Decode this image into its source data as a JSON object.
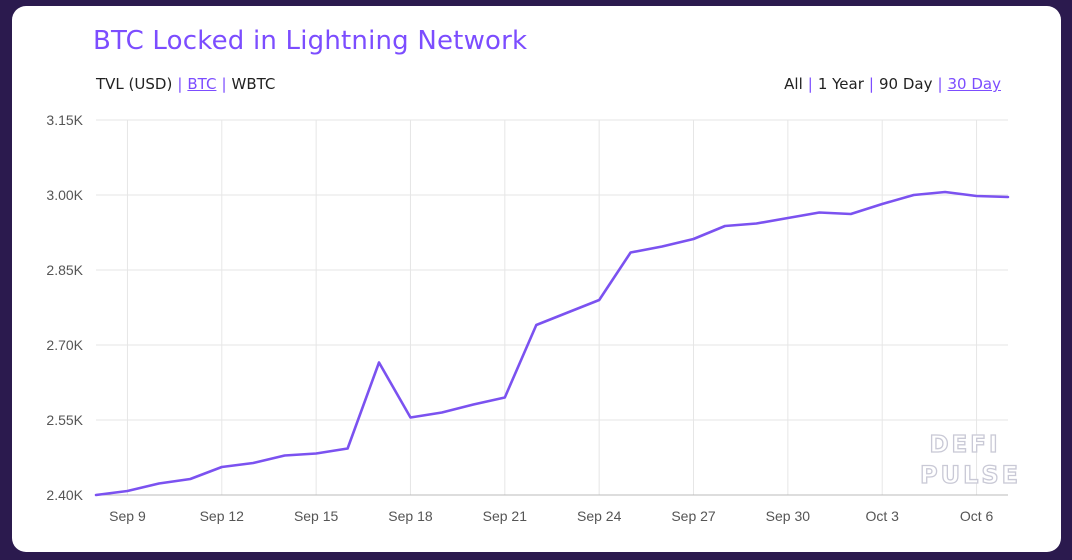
{
  "title": "BTC Locked in Lightning Network",
  "currency_toggle": [
    {
      "label": "TVL (USD)",
      "active": false
    },
    {
      "label": "BTC",
      "active": true
    },
    {
      "label": "WBTC",
      "active": false
    }
  ],
  "range_toggle": [
    {
      "label": "All",
      "active": false
    },
    {
      "label": "1 Year",
      "active": false
    },
    {
      "label": "90 Day",
      "active": false
    },
    {
      "label": "30 Day",
      "active": true
    }
  ],
  "separator": "|",
  "watermark": {
    "line1": "DEFI",
    "line2": "PULSE"
  },
  "colors": {
    "accent": "#7c4dff",
    "line": "#7b52f0",
    "grid": "#e6e6e6",
    "background": "#2b1a4e"
  },
  "chart_data": {
    "type": "line",
    "x": [
      "Sep 8",
      "Sep 9",
      "Sep 10",
      "Sep 11",
      "Sep 12",
      "Sep 13",
      "Sep 14",
      "Sep 15",
      "Sep 16",
      "Sep 17",
      "Sep 18",
      "Sep 19",
      "Sep 20",
      "Sep 21",
      "Sep 22",
      "Sep 23",
      "Sep 24",
      "Sep 25",
      "Sep 26",
      "Sep 27",
      "Sep 28",
      "Sep 29",
      "Sep 30",
      "Oct 1",
      "Oct 2",
      "Oct 3",
      "Oct 4",
      "Oct 5",
      "Oct 6",
      "Oct 7"
    ],
    "values": [
      2400,
      2408,
      2423,
      2432,
      2456,
      2464,
      2479,
      2483,
      2493,
      2665,
      2555,
      2565,
      2581,
      2595,
      2740,
      2765,
      2790,
      2885,
      2897,
      2912,
      2938,
      2943,
      2954,
      2965,
      2962,
      2982,
      3000,
      3006,
      2998,
      2996
    ],
    "x_ticks": [
      "Sep 9",
      "Sep 12",
      "Sep 15",
      "Sep 18",
      "Sep 21",
      "Sep 24",
      "Sep 27",
      "Sep 30",
      "Oct 3",
      "Oct 6"
    ],
    "y_ticks": [
      2400,
      2550,
      2700,
      2850,
      3000,
      3150
    ],
    "y_tick_labels": [
      "2.40K",
      "2.55K",
      "2.70K",
      "2.85K",
      "3.00K",
      "3.15K"
    ],
    "ylim": [
      2400,
      3150
    ],
    "grid": true,
    "xlabel": "",
    "ylabel": ""
  }
}
